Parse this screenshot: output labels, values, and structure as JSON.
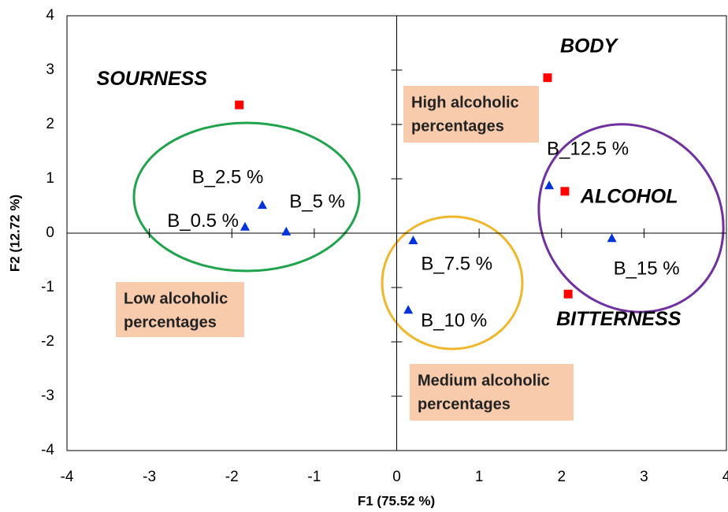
{
  "chart_data": {
    "type": "scatter",
    "xlabel": "F1 (75.52 %)",
    "ylabel": "F2 (12.72 %)",
    "xlim": [
      -4,
      4
    ],
    "ylim": [
      -4,
      4
    ],
    "xticks": [
      -4,
      -3,
      -2,
      -1,
      0,
      1,
      2,
      3,
      4
    ],
    "yticks": [
      -4,
      -3,
      -2,
      -1,
      0,
      1,
      2,
      3,
      4
    ],
    "series": [
      {
        "color": "#0033dd",
        "marker": "triangle",
        "x": [
          -1.84,
          -1.63,
          -1.34,
          0.2,
          0.14,
          1.85,
          2.61
        ],
        "values": [
          0.12,
          0.52,
          0.03,
          -0.13,
          -1.41,
          0.88,
          -0.09
        ],
        "labels": [
          "B_0.5 %",
          "B_2.5 %",
          "B_5 %",
          "B_7.5 %",
          "B_10 %",
          "B_12.5 %",
          "B_15 %"
        ]
      },
      {
        "color": "#ff0000",
        "marker": "square",
        "x": [
          -1.91,
          1.83,
          2.04,
          2.08
        ],
        "values": [
          2.36,
          2.86,
          0.77,
          -1.12
        ],
        "labels": [
          "SOURNESS",
          "BODY",
          "ALCOHOL",
          "BITTERNESS"
        ]
      }
    ],
    "annotations": [
      {
        "lines": [
          "High alcoholic",
          "percentages"
        ]
      },
      {
        "lines": [
          "Low alcoholic",
          "percentages"
        ]
      },
      {
        "lines": [
          "Medium alcoholic",
          "percentages"
        ]
      }
    ]
  }
}
